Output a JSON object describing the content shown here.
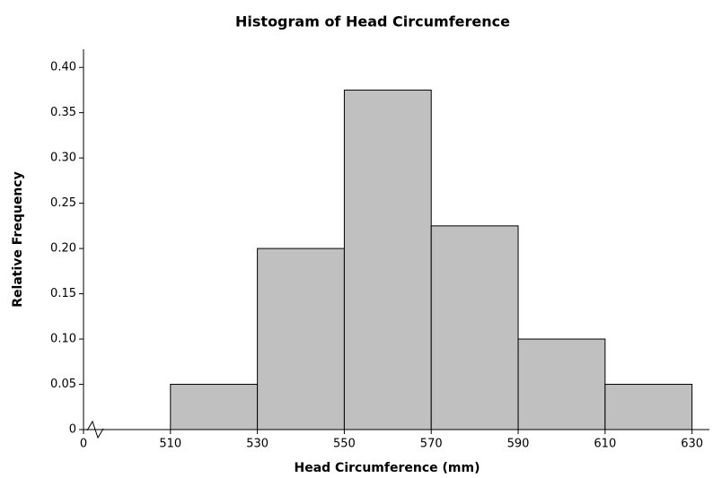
{
  "chart_data": {
    "type": "histogram",
    "title": "Histogram of Head Circumference",
    "xlabel": "Head Circumference (mm)",
    "ylabel": "Relative Frequency",
    "bins": [
      510,
      530,
      550,
      570,
      590,
      610,
      630
    ],
    "values": [
      0.05,
      0.2,
      0.375,
      0.225,
      0.1,
      0.05
    ],
    "color": "#c0c0c0",
    "edgecolor": "#000000",
    "xlim": [
      490,
      634
    ],
    "axis_break": true,
    "xticks": [
      0,
      510,
      530,
      550,
      570,
      590,
      610,
      630
    ],
    "ylim": [
      0,
      0.42
    ],
    "yticks": [
      0,
      0.05,
      {
        "value": 0.1,
        "label": "0.10"
      },
      0.15,
      {
        "value": 0.2,
        "label": "0.20"
      },
      0.25,
      {
        "value": 0.3,
        "label": "0.30"
      },
      0.35,
      {
        "value": 0.4,
        "label": "0.40"
      }
    ]
  }
}
